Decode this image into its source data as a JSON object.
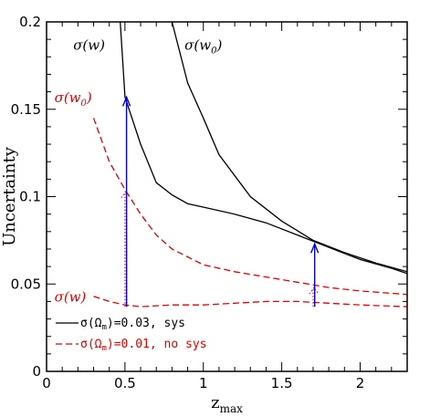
{
  "chart_data": {
    "type": "line",
    "xlabel": "z",
    "xlabel_sub": "max",
    "ylabel": "Uncertainty",
    "xlim": [
      0,
      2.3
    ],
    "ylim": [
      0,
      0.2
    ],
    "x_ticks": [
      0,
      0.5,
      1,
      1.5,
      2
    ],
    "x_tick_labels": [
      "0",
      "0.5",
      "1",
      "1.5",
      "2"
    ],
    "y_ticks": [
      0,
      0.05,
      0.1,
      0.15,
      0.2
    ],
    "y_tick_labels": [
      "0",
      "0.05",
      "0.1",
      "0.15",
      "0.2"
    ],
    "colors": {
      "sys": "#000000",
      "nosys": "#e00000",
      "arrow": "#0000e0"
    },
    "series": [
      {
        "group": "sys",
        "label": "w",
        "style": "solid",
        "points": [
          [
            0.47,
            0.2
          ],
          [
            0.5,
            0.157
          ],
          [
            0.6,
            0.13
          ],
          [
            0.7,
            0.108
          ],
          [
            0.8,
            0.101
          ],
          [
            0.9,
            0.096
          ],
          [
            1.0,
            0.094
          ],
          [
            1.2,
            0.09
          ],
          [
            1.4,
            0.085
          ],
          [
            1.6,
            0.078
          ],
          [
            1.8,
            0.071
          ],
          [
            2.0,
            0.064
          ],
          [
            2.2,
            0.059
          ],
          [
            2.3,
            0.056
          ]
        ]
      },
      {
        "group": "sys",
        "label": "w0",
        "style": "solid",
        "points": [
          [
            0.8,
            0.2
          ],
          [
            0.9,
            0.165
          ],
          [
            1.0,
            0.145
          ],
          [
            1.1,
            0.124
          ],
          [
            1.3,
            0.1
          ],
          [
            1.5,
            0.086
          ],
          [
            1.7,
            0.075
          ],
          [
            1.9,
            0.068
          ],
          [
            2.1,
            0.062
          ],
          [
            2.3,
            0.057
          ]
        ]
      },
      {
        "group": "nosys",
        "label": "w0",
        "style": "dashed",
        "points": [
          [
            0.3,
            0.145
          ],
          [
            0.4,
            0.12
          ],
          [
            0.5,
            0.104
          ],
          [
            0.6,
            0.09
          ],
          [
            0.7,
            0.078
          ],
          [
            0.8,
            0.07
          ],
          [
            1.0,
            0.061
          ],
          [
            1.2,
            0.057
          ],
          [
            1.4,
            0.054
          ],
          [
            1.6,
            0.051
          ],
          [
            1.8,
            0.048
          ],
          [
            2.0,
            0.046
          ],
          [
            2.3,
            0.044
          ]
        ]
      },
      {
        "group": "nosys",
        "label": "w",
        "style": "dashed",
        "points": [
          [
            0.3,
            0.043
          ],
          [
            0.4,
            0.04
          ],
          [
            0.5,
            0.038
          ],
          [
            0.6,
            0.037
          ],
          [
            0.8,
            0.038
          ],
          [
            1.0,
            0.038
          ],
          [
            1.2,
            0.039
          ],
          [
            1.4,
            0.04
          ],
          [
            1.6,
            0.04
          ],
          [
            1.8,
            0.039
          ],
          [
            2.0,
            0.038
          ],
          [
            2.3,
            0.037
          ]
        ]
      }
    ],
    "arrows": [
      {
        "x": 0.51,
        "y_from": 0.037,
        "y_to": 0.157
      },
      {
        "x": 1.71,
        "y_from": 0.037,
        "y_to": 0.073
      }
    ],
    "dotted_arrows": [
      {
        "x": 0.5,
        "y_from": 0.037,
        "y_to": 0.103
      },
      {
        "x": 1.7,
        "y_from": 0.037,
        "y_to": 0.048
      }
    ],
    "annotations": [
      {
        "name": "label-sigma-w-black",
        "sigma": "σ(w",
        "sub": "",
        "close": ")",
        "color": "#000000",
        "x": 0.17,
        "y": 0.184
      },
      {
        "name": "label-sigma-w0-black",
        "sigma": "σ(w",
        "sub": "0",
        "close": ")",
        "color": "#000000",
        "x": 0.88,
        "y": 0.184
      },
      {
        "name": "label-sigma-w0-red",
        "sigma": "σ(w",
        "sub": "0",
        "close": ")",
        "color": "#e00000",
        "x": 0.05,
        "y": 0.154
      },
      {
        "name": "label-sigma-w-red",
        "sigma": "σ(w",
        "sub": "",
        "close": ")",
        "color": "#e00000",
        "x": 0.05,
        "y": 0.04
      }
    ],
    "legend": {
      "placement": "bottom-left",
      "entries": [
        {
          "group": "sys",
          "style": "solid",
          "pre": "σ(Ω",
          "sub": "m",
          "post": ")=0.03, sys"
        },
        {
          "group": "nosys",
          "style": "dashed",
          "pre": "σ(Ω",
          "sub": "m",
          "post": ")=0.01, no sys"
        }
      ]
    }
  }
}
